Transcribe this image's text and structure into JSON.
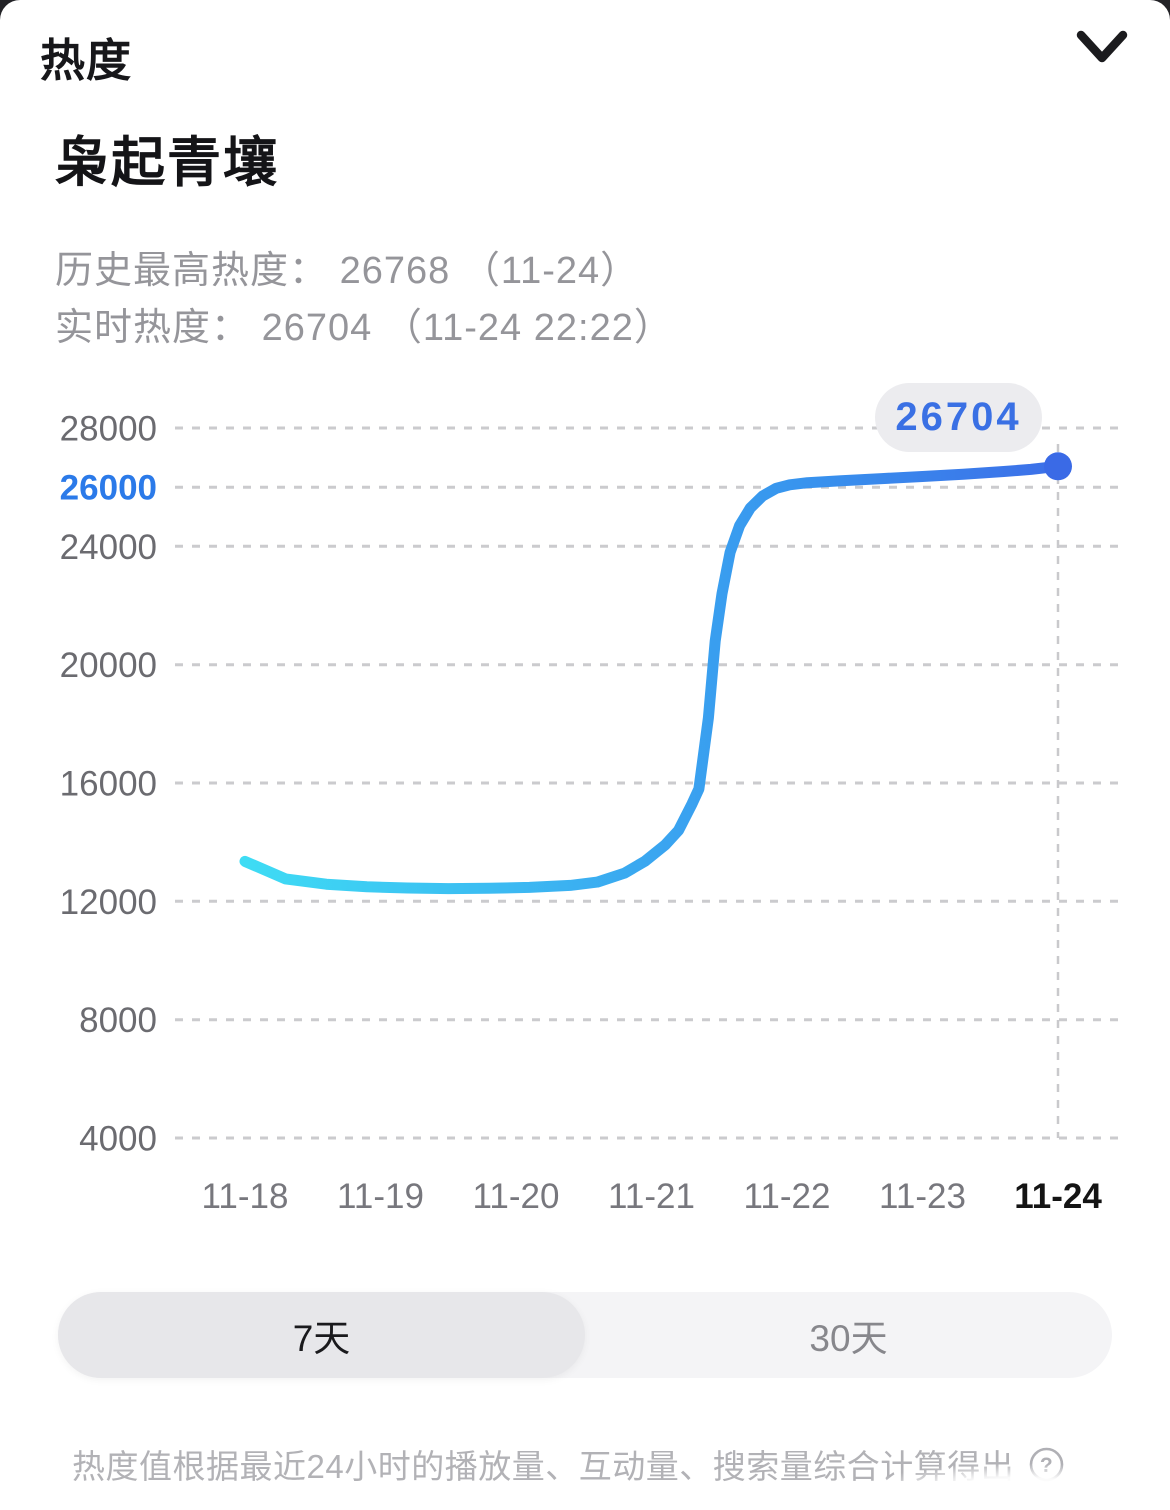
{
  "panel": {
    "title": "热度",
    "collapse_icon": "chevron-down-icon"
  },
  "subject": {
    "title": "枭起青壤"
  },
  "stats": [
    {
      "label": "历史最高热度：",
      "value": "26768",
      "detail": "（11-24）"
    },
    {
      "label": "实时热度：",
      "value": "26704",
      "detail": "（11-24 22:22）"
    }
  ],
  "chart_data": {
    "type": "line",
    "x_labels": [
      "11-18",
      "11-19",
      "11-20",
      "11-21",
      "11-22",
      "11-23",
      "11-24"
    ],
    "y_ticks": [
      28000,
      26000,
      24000,
      20000,
      16000,
      12000,
      8000,
      4000
    ],
    "highlighted_y_tick": 26000,
    "y_range": [
      4000,
      28000
    ],
    "grid": "horizontal dashed",
    "legend": "none",
    "series": [
      {
        "name": "热度",
        "daily_points": [
          {
            "date": "11-18",
            "value": 13350
          },
          {
            "date": "11-19",
            "value": 12480
          },
          {
            "date": "11-20",
            "value": 12460
          },
          {
            "date": "11-21",
            "value": 13550
          },
          {
            "date": "11-22",
            "value": 26050
          },
          {
            "date": "11-23",
            "value": 26360
          },
          {
            "date": "11-24",
            "value": 26704
          }
        ]
      }
    ],
    "curve_points": [
      [
        0,
        13350
      ],
      [
        0.3,
        12760
      ],
      [
        0.6,
        12580
      ],
      [
        0.9,
        12490
      ],
      [
        1.2,
        12450
      ],
      [
        1.5,
        12430
      ],
      [
        1.8,
        12440
      ],
      [
        2.1,
        12470
      ],
      [
        2.4,
        12540
      ],
      [
        2.6,
        12650
      ],
      [
        2.8,
        12950
      ],
      [
        2.95,
        13350
      ],
      [
        3.1,
        13900
      ],
      [
        3.2,
        14400
      ],
      [
        3.3,
        15300
      ],
      [
        3.35,
        15800
      ],
      [
        3.42,
        18200
      ],
      [
        3.47,
        20800
      ],
      [
        3.52,
        22400
      ],
      [
        3.58,
        23800
      ],
      [
        3.65,
        24700
      ],
      [
        3.73,
        25300
      ],
      [
        3.82,
        25700
      ],
      [
        3.92,
        25960
      ],
      [
        4.02,
        26080
      ],
      [
        4.15,
        26150
      ],
      [
        4.4,
        26220
      ],
      [
        4.7,
        26290
      ],
      [
        5.0,
        26360
      ],
      [
        5.3,
        26440
      ],
      [
        5.6,
        26530
      ],
      [
        5.8,
        26600
      ],
      [
        6.0,
        26704
      ]
    ],
    "current_point": {
      "value": 26704,
      "label": "26704",
      "date": "11-24"
    },
    "colors": {
      "axis_label": "#6b6b70",
      "axis_label_highlight": "#2b7ae9",
      "x_label": "#77777d",
      "x_label_active": "#141414",
      "gridline": "#cbcbce",
      "marker_line": "#c9c9cc",
      "line_gradient": [
        [
          "0",
          "#3EDCF4"
        ],
        [
          "0.3",
          "#3CBCF2"
        ],
        [
          "0.5",
          "#3AA6F0"
        ],
        [
          "0.68",
          "#3894EE"
        ],
        [
          "0.85",
          "#3A80EB"
        ],
        [
          "1",
          "#3C6FE8"
        ]
      ],
      "endpoint_dot": "#3a6ae6",
      "badge_bg": "#ececef",
      "badge_text": "#3a70e4"
    }
  },
  "range_tabs": {
    "options": [
      {
        "label": "7天",
        "selected": true
      },
      {
        "label": "30天",
        "selected": false
      }
    ]
  },
  "footer": {
    "note": "热度值根据最近24小时的播放量、互动量、搜索量综合计算得出",
    "help_icon": "question-circle-icon",
    "help_glyph": "?"
  }
}
